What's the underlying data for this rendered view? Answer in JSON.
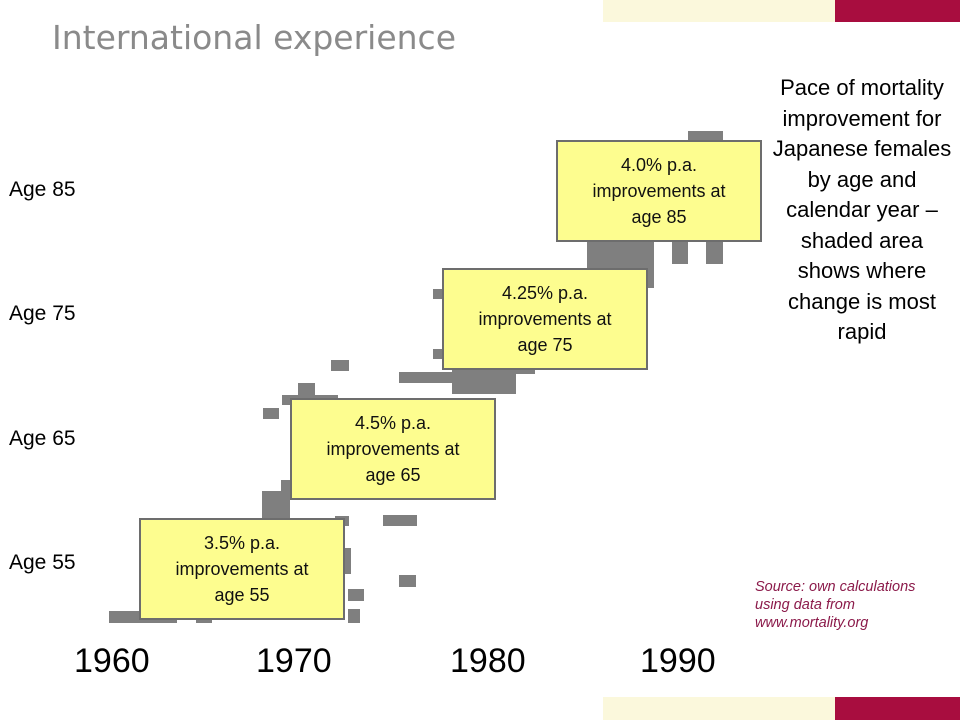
{
  "slide": {
    "title": "International experience",
    "colors": {
      "title_text": "#8a8a8a",
      "accent_cream": "#fbf8dc",
      "accent_crimson": "#a80d3f",
      "callout_fill": "#fdfd8f",
      "shaded_cells": "#7f7f7f",
      "source_text": "#8b1a4a"
    }
  },
  "heatmap": {
    "age_labels": [
      "Age 85",
      "Age 75",
      "Age 65",
      "Age 55"
    ],
    "year_labels": [
      "1960",
      "1970",
      "1980",
      "1990"
    ],
    "callouts": [
      {
        "rate": "4.0% p.a.",
        "line2": "improvements at",
        "line3": "age 85"
      },
      {
        "rate": "4.25% p.a.",
        "line2": "improvements at",
        "line3": "age 75"
      },
      {
        "rate": "4.5% p.a.",
        "line2": "improvements at",
        "line3": "age 65"
      },
      {
        "rate": "3.5% p.a.",
        "line2": "improvements at",
        "line3": "age 55"
      }
    ]
  },
  "description": "Pace of mortality improvement for Japanese females by age and calendar year – shaded area shows where change is most rapid",
  "source": "Source: own calculations using data from www.mortality.org"
}
